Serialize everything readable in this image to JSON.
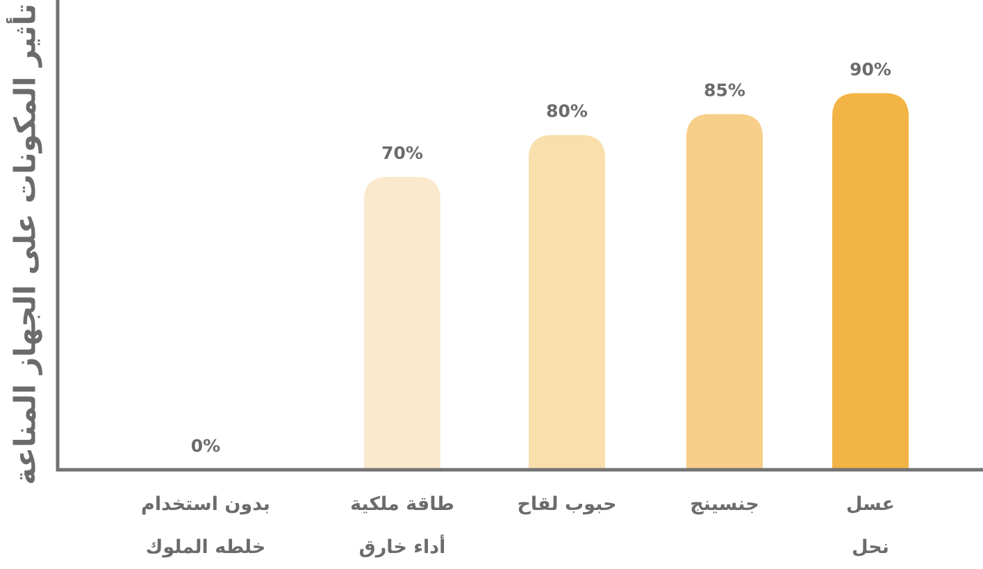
{
  "chart_data": {
    "type": "bar",
    "ylabel": "تأثير المكونات على الجهاز المناعة",
    "xlabel": "",
    "title": "",
    "ylim": [
      0,
      100
    ],
    "grid": false,
    "legend": "none",
    "categories": [
      [
        "بدون استخدام",
        "خلطه الملوك"
      ],
      [
        "طاقة ملكية",
        "أداء خارق"
      ],
      [
        "حبوب لقاح"
      ],
      [
        "جنسينج"
      ],
      [
        "عسل",
        "نحل"
      ]
    ],
    "values": [
      0,
      70,
      80,
      85,
      90
    ],
    "value_labels": [
      "0%",
      "70%",
      "80%",
      "85%",
      "90%"
    ],
    "colors": [
      "#fbe9cd",
      "#fbe9cd",
      "#f8dfac",
      "#f7cf88",
      "#f2b444"
    ],
    "axis_color": "#737373",
    "text_color": "#6b6b6b"
  }
}
